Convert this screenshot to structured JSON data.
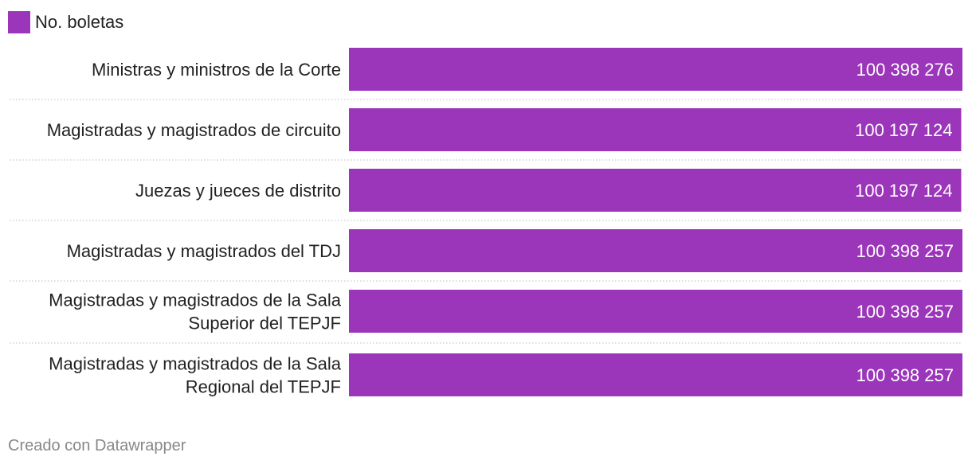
{
  "chart_data": {
    "type": "bar",
    "orientation": "horizontal",
    "categories": [
      [
        "Ministras y ministros de la Corte"
      ],
      [
        "Magistradas y magistrados de circuito"
      ],
      [
        "Juezas y jueces de distrito"
      ],
      [
        "Magistradas y magistrados del TDJ"
      ],
      [
        "Magistradas y magistrados de la Sala",
        "Superior del TEPJF"
      ],
      [
        "Magistradas y magistrados de la Sala",
        "Regional del TEPJF"
      ]
    ],
    "series": [
      {
        "name": "No. boletas",
        "color": "#9b35b9",
        "values": [
          100398276,
          100197124,
          100197124,
          100398257,
          100398257,
          100398257
        ],
        "labels": [
          "100 398 276",
          "100 197 124",
          "100 197 124",
          "100 398 257",
          "100 398 257",
          "100 398 257"
        ]
      }
    ],
    "xlim": [
      0,
      100398276
    ],
    "legend": "top-left",
    "grid": false,
    "row_separators": "dotted"
  },
  "footer": {
    "credit": "Creado con Datawrapper"
  }
}
